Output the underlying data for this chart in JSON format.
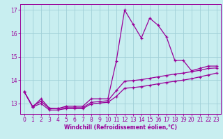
{
  "xlabel": "Windchill (Refroidissement éolien,°C)",
  "xlim": [
    -0.5,
    23.5
  ],
  "ylim": [
    12.55,
    17.25
  ],
  "yticks": [
    13,
    14,
    15,
    16,
    17
  ],
  "xticks": [
    0,
    1,
    2,
    3,
    4,
    5,
    6,
    7,
    8,
    9,
    10,
    11,
    12,
    13,
    14,
    15,
    16,
    17,
    18,
    19,
    20,
    21,
    22,
    23
  ],
  "bg_color": "#c8eef0",
  "line_color": "#990099",
  "grid_color": "#a0d0d8",
  "line1_y": [
    13.5,
    12.85,
    13.2,
    12.8,
    12.78,
    12.88,
    12.88,
    12.88,
    13.2,
    13.2,
    13.2,
    14.8,
    17.0,
    16.4,
    15.8,
    16.65,
    16.35,
    15.85,
    14.85,
    14.85,
    14.4,
    14.5,
    14.6,
    14.6
  ],
  "line2_y": [
    13.5,
    12.88,
    13.1,
    12.78,
    12.78,
    12.82,
    12.82,
    12.82,
    13.05,
    13.08,
    13.12,
    13.55,
    13.95,
    13.98,
    14.02,
    14.08,
    14.14,
    14.2,
    14.26,
    14.3,
    14.36,
    14.42,
    14.5,
    14.52
  ],
  "line3_y": [
    13.5,
    12.85,
    13.0,
    12.72,
    12.72,
    12.78,
    12.78,
    12.78,
    12.98,
    13.02,
    13.05,
    13.3,
    13.65,
    13.68,
    13.72,
    13.78,
    13.84,
    13.9,
    13.95,
    14.0,
    14.06,
    14.14,
    14.22,
    14.3
  ]
}
